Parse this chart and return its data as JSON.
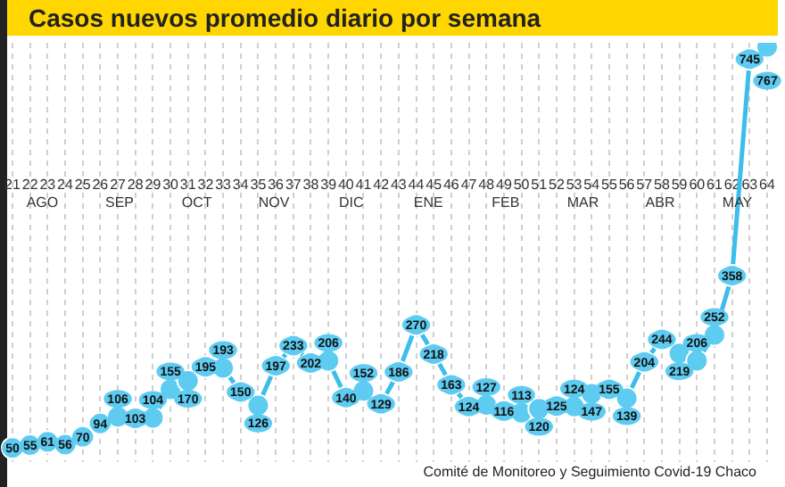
{
  "chart_data": {
    "type": "line",
    "title": "Casos nuevos promedio diario por semana",
    "categories": [
      "21",
      "22",
      "23",
      "24",
      "25",
      "26",
      "27",
      "28",
      "29",
      "30",
      "31",
      "32",
      "33",
      "34",
      "35",
      "36",
      "37",
      "38",
      "39",
      "40",
      "41",
      "42",
      "43",
      "44",
      "45",
      "46",
      "47",
      "48",
      "49",
      "50",
      "51",
      "52",
      "53",
      "54",
      "55",
      "56",
      "57",
      "58",
      "59",
      "60",
      "61",
      "62",
      "63",
      "64"
    ],
    "series": [
      {
        "color": "#3cbdeb",
        "values": [
          50,
          55,
          61,
          56,
          70,
          94,
          106,
          103,
          104,
          155,
          170,
          195,
          193,
          150,
          126,
          197,
          233,
          202,
          206,
          140,
          152,
          129,
          186,
          270,
          218,
          163,
          124,
          127,
          116,
          113,
          120,
          125,
          124,
          147,
          155,
          139,
          204,
          244,
          219,
          206,
          252,
          358,
          745,
          767
        ]
      }
    ],
    "data_labels": true,
    "marker": "circle",
    "grid": "x",
    "legend": false,
    "tick_labels": "x",
    "annotations": [
      "AGO",
      "SEP",
      "OCT",
      "NOV",
      "DIC",
      "ENE",
      "FEB",
      "MAR",
      "ABR",
      "MAY",
      "Comité de Monitoreo y Seguimiento Covid-19 Chaco"
    ]
  }
}
